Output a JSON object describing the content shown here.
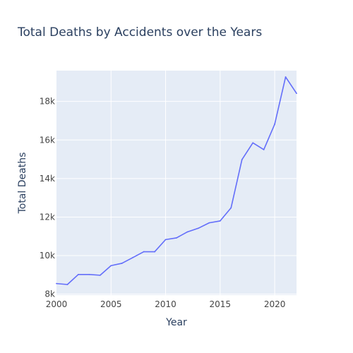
{
  "chart_data": {
    "type": "line",
    "title": "Total Deaths by Accidents over the Years",
    "xlabel": "Year",
    "ylabel": "Total Deaths",
    "xlim": [
      2000,
      2022
    ],
    "ylim": [
      7950,
      19600
    ],
    "x_ticks": [
      2000,
      2005,
      2010,
      2015,
      2020
    ],
    "y_ticks": [
      8000,
      10000,
      12000,
      14000,
      16000,
      18000
    ],
    "y_tick_labels": [
      "8k",
      "10k",
      "12k",
      "14k",
      "16k",
      "18k"
    ],
    "grid": true,
    "legend": "none",
    "colors": {
      "line": "#636efa",
      "plot_bg": "#e5ecf6",
      "grid": "#ffffff",
      "text": "#2a3f5f",
      "tick_text": "#444444"
    },
    "series": [
      {
        "x": [
          2000,
          2001,
          2002,
          2003,
          2004,
          2005,
          2006,
          2007,
          2008,
          2009,
          2010,
          2011,
          2012,
          2013,
          2014,
          2015,
          2016,
          2017,
          2018,
          2019,
          2020,
          2021,
          2022
        ],
        "values": [
          8550,
          8500,
          9020,
          9020,
          8980,
          9480,
          9600,
          9900,
          10200,
          10200,
          10830,
          10920,
          11230,
          11420,
          11700,
          11800,
          12480,
          14980,
          15850,
          15500,
          16820,
          19270,
          18420
        ]
      }
    ]
  }
}
